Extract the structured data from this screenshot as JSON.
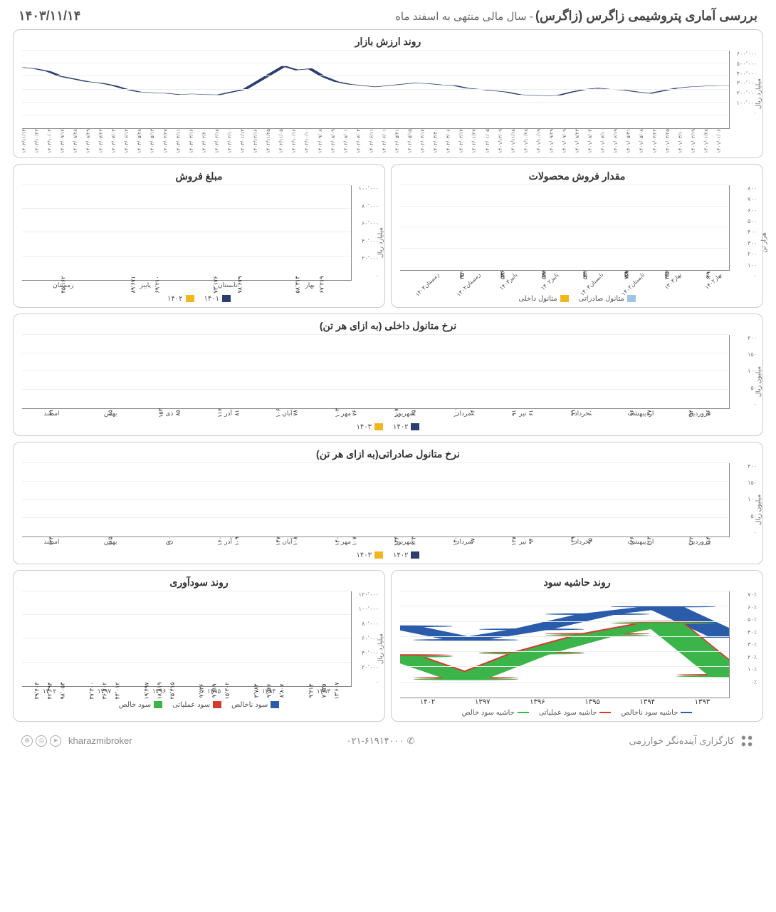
{
  "colors": {
    "navy": "#2c3e6e",
    "yellow": "#f0b81e",
    "lightblue": "#9ec4e6",
    "red": "#d63a2f",
    "green": "#3bb54a",
    "blue_line": "#2a5caa",
    "grid": "#eeeeee",
    "axis": "#888888",
    "text": "#555555"
  },
  "header": {
    "title": "بررسی آماری پتروشیمی زاگرس (زاگرس)",
    "subtitle": " - سال مالی منتهی به اسفند ماه",
    "date": "۱۴۰۳/۱۱/۱۴"
  },
  "market_value": {
    "title": "روند ارزش بازار",
    "y_label": "میلیارد ریال",
    "y_ticks": [
      "۰",
      "۱۰۰٬۰۰۰",
      "۲۰۰٬۰۰۰",
      "۳۰۰٬۰۰۰",
      "۴۰۰٬۰۰۰",
      "۵۰۰٬۰۰۰",
      "۶۰۰٬۰۰۰"
    ],
    "ylim": [
      0,
      600000
    ],
    "x_dates": [
      "۱۴۰۱/۰۱/۰۶",
      "۱۴۰۱/۰۱/۲۸",
      "۱۴۰۱/۰۲/۱۹",
      "۱۴۰۱/۰۳/۱۰",
      "۱۴۰۱/۰۳/۲۵",
      "۱۴۰۱/۰۴/۲۲",
      "۱۴۰۱/۰۵/۰۸",
      "۱۴۰۱/۰۵/۳۱",
      "۱۴۰۱/۰۶/۱۹",
      "۱۴۰۱/۰۷/۱۰",
      "۱۴۰۱/۰۸/۰۴",
      "۱۴۰۱/۰۸/۲۳",
      "۱۴۰۱/۰۹/۰۹",
      "۱۴۰۱/۰۹/۲۹",
      "۱۴۰۱/۱۰/۱۹",
      "۱۴۰۱/۱۰/۲۸",
      "۱۴۰۱/۱۱/۱۸",
      "۱۴۰۱/۱۲/۰۹",
      "۱۴۰۲/۰۱/۰۵",
      "۱۴۰۲/۰۱/۲۷",
      "۱۴۰۲/۰۲/۱۷",
      "۱۴۰۲/۰۳/۰۶",
      "۱۴۰۲/۰۳/۳۰",
      "۱۴۰۲/۰۴/۱۷",
      "۱۴۰۲/۰۵/۱۵",
      "۱۴۰۲/۰۵/۳۱",
      "۱۴۰۲/۰۶/۰۱",
      "۱۴۰۲/۰۶/۱۱",
      "۱۴۰۲/۰۷/۰۳",
      "۱۴۰۲/۰۸/۰۱",
      "۱۴۰۲/۰۸/۰۹",
      "۱۴۰۲/۰۹/۰۸",
      "۱۴۰۲/۱۰/۱۰",
      "۱۴۰۲/۱۰/۱۶",
      "۱۴۰۲/۱۱/۰۵",
      "۱۴۰۲/۱۱/۲۵",
      "۱۴۰۲/۱۲/۱۶",
      "۱۴۰۳/۰۱/۱۴",
      "۱۴۰۳/۰۲/۱۰",
      "۱۴۰۳/۰۲/۱۸",
      "۱۴۰۳/۰۲/۲۰",
      "۱۴۰۳/۰۳/۱۶",
      "۱۴۰۳/۰۴/۱۱",
      "۱۴۰۳/۰۴/۲۷",
      "۱۴۰۳/۰۵/۱۳",
      "۱۴۰۳/۰۵/۲۸",
      "۱۴۰۳/۰۶/۱۲",
      "۱۴۰۳/۰۷/۰۳",
      "۱۴۰۳/۰۷/۲۳",
      "۱۴۰۳/۰۸/۲۹",
      "۱۴۰۳/۰۸/۲۸",
      "۱۴۰۳/۰۹/۱۷",
      "۱۴۰۳/۱۰/۰۴",
      "۱۴۰۳/۱۰/۲۳",
      "۱۴۰۳/۱۱/۱۴"
    ],
    "values": [
      470,
      460,
      440,
      400,
      380,
      360,
      350,
      330,
      300,
      280,
      275,
      270,
      260,
      265,
      260,
      258,
      280,
      300,
      360,
      420,
      480,
      450,
      460,
      400,
      360,
      340,
      330,
      320,
      330,
      340,
      350,
      345,
      335,
      330,
      310,
      300,
      290,
      280,
      260,
      255,
      250,
      255,
      280,
      300,
      310,
      300,
      295,
      280,
      270,
      290,
      310,
      320,
      325,
      330,
      330
    ]
  },
  "sales_volume": {
    "title": "مقدار فروش محصولات",
    "y_label": "هزار تن",
    "y_ticks": [
      "۰",
      "۱۰۰",
      "۲۰۰",
      "۳۰۰",
      "۴۰۰",
      "۵۰۰",
      "۶۰۰",
      "۷۰۰",
      "۸۰۰"
    ],
    "ylim": [
      0,
      800
    ],
    "categories": [
      "بهار۱۴۰۲",
      "بهار۱۴۰۳",
      "تابستان۱۴۰۲",
      "تابستان۱۴۰۳",
      "پاییز۱۴۰۲",
      "پاییز۱۴۰۳",
      "زمستان۱۴۰۲",
      "زمستان۱۴۰۳"
    ],
    "export": {
      "label": "متانول صادراتی",
      "vals": [
        600,
        442,
        757,
        532,
        586,
        586,
        350,
        null
      ],
      "labels": [
        "۶۰۰",
        "۴۴۲",
        "۷۵۷",
        "۵۳۲",
        "۵۸۶",
        "۵۸۶",
        "۳۵۰",
        ""
      ]
    },
    "domestic": {
      "label": "متانول داخلی",
      "vals": [
        49,
        25,
        39,
        22,
        38,
        33,
        33,
        null
      ],
      "labels": [
        "۴۹",
        "۲۵",
        "۳۹",
        "۲۲",
        "۳۸",
        "۳۳",
        "۳۳",
        ""
      ]
    }
  },
  "sales_amount": {
    "title": "مبلغ فروش",
    "y_label": "میلیارد ریال",
    "y_ticks": [
      "۰",
      "۲۰٬۰۰۰",
      "۴۰٬۰۰۰",
      "۶۰٬۰۰۰",
      "۸۰٬۰۰۰",
      "۱۰۰٬۰۰۰"
    ],
    "ylim": [
      0,
      100000
    ],
    "categories": [
      "بهار",
      "تابستان",
      "پاییز",
      "زمستان"
    ],
    "s1401": {
      "label": "۱۴۰۱",
      "vals": [
        67219,
        78679,
        69210,
        45162
      ],
      "labels": [
        "۶۷٬۲۱۹",
        "۷۸٬۶۷۹",
        "۶۹٬۲۱۰",
        "۴۵٬۱۶۲"
      ]
    },
    "s1402": {
      "label": "۱۴۰۲",
      "vals": [
        58313,
        73176,
        89671,
        null
      ],
      "labels": [
        "۵۸٬۳۱۳",
        "۷۳٬۱۷۶",
        "۸۹٬۶۷۱",
        ""
      ]
    }
  },
  "domestic_rate": {
    "title": "نرخ متانول داخلی (به ازای هر تن)",
    "y_label": "میلیون ریال",
    "y_ticks": [
      "۰",
      "۵۰",
      "۱۰۰",
      "۱۵۰",
      "۲۰۰"
    ],
    "ylim": [
      0,
      200
    ],
    "months": [
      "فروردین",
      "اردیبهشت",
      "خرداد",
      "تیر",
      "مرداد",
      "شهریور",
      "مهر",
      "آبان",
      "آذر",
      "دی",
      "بهمن",
      "اسفند"
    ],
    "s1402": {
      "label": "۱۴۰۲",
      "vals": [
        76,
        67,
        60,
        61,
        64,
        65,
        76,
        78,
        81,
        85,
        85,
        89
      ],
      "labels": [
        "۷۶",
        "۶۷",
        "۶۰",
        "۶۱",
        "۶۴",
        "۶۵",
        "۷۶",
        "۷۸",
        "۸۱",
        "۸۵",
        "۸۵",
        "۸۹"
      ]
    },
    "s1403": {
      "label": "۱۴۰۳",
      "vals": [
        94,
        96,
        99,
        91,
        100,
        107,
        103,
        106,
        116,
        153,
        null,
        null
      ],
      "labels": [
        "۹۴",
        "۹۶",
        "۹۹",
        "۹۱",
        "۱۰۰",
        "۱۰۷",
        "۱۰۳",
        "۱۰۶",
        "۱۱۶",
        "۱۵۳",
        "",
        ""
      ]
    }
  },
  "export_rate": {
    "title": "نرخ متانول صادراتی(به ازای هر تن)",
    "y_label": "میلیون ریال",
    "y_ticks": [
      "۰",
      "۵۰",
      "۱۰۰",
      "۱۵۰",
      "۲۰۰"
    ],
    "ylim": [
      0,
      200
    ],
    "months": [
      "فروردین",
      "اردیبهشت",
      "خرداد",
      "تیر",
      "مرداد",
      "شهریور",
      "مهر",
      "آبان",
      "آذر",
      "دی",
      "بهمن",
      "اسفند"
    ],
    "s1402": {
      "label": "۱۴۰۲",
      "vals": [
        114,
        113,
        95,
        94,
        97,
        103,
        107,
        108,
        109,
        110,
        115,
        124
      ],
      "labels": [
        "۱۱۴",
        "۱۱۳",
        "۹۵",
        "۹۴",
        "۹۷",
        "۱۰۳",
        "۱۰۷",
        "۱۰۸",
        "۱۰۹",
        "۱۱۰",
        "۱۱۵",
        "۱۲۴"
      ]
    },
    "s1403": {
      "label": "۱۴۰۳",
      "vals": [
        122,
        126,
        129,
        127,
        130,
        134,
        140,
        147,
        160,
        null,
        null,
        null
      ],
      "labels": [
        "۱۲۲",
        "۱۲۶",
        "۱۲۹",
        "۱۲۷",
        "۱۳۰",
        "۱۳۴",
        "۱۴۰",
        "۱۴۷",
        "۱۶۰",
        "",
        "",
        ""
      ]
    }
  },
  "margin_trend": {
    "title": "روند حاشیه سود",
    "y_ticks": [
      "۰٪",
      "۱۰٪",
      "۲۰٪",
      "۳۰٪",
      "۴۰٪",
      "۵۰٪",
      "۶۰٪",
      "۷۰٪"
    ],
    "ylim": [
      0,
      70
    ],
    "years": [
      "۱۳۹۳",
      "۱۳۹۴",
      "۱۳۹۵",
      "۱۳۹۶",
      "۱۳۹۷",
      "۱۴۰۲"
    ],
    "gross": {
      "label": "حاشیه سود ناخالص",
      "vals": [
        47,
        38,
        45,
        55,
        60,
        40
      ]
    },
    "operating": {
      "label": "حاشیه سود عملیاتی",
      "vals": [
        28,
        13,
        30,
        42,
        50,
        15
      ]
    },
    "net": {
      "label": "حاشیه سود خالص",
      "vals": [
        27,
        12,
        29,
        41,
        49,
        14
      ]
    }
  },
  "profit_trend": {
    "title": "روند سودآوری",
    "y_label": "میلیارد ریال",
    "y_ticks": [
      "۰",
      "۲۰٬۰۰۰",
      "۴۰٬۰۰۰",
      "۶۰٬۰۰۰",
      "۸۰٬۰۰۰",
      "۱۰۰٬۰۰۰",
      "۱۲۰٬۰۰۰"
    ],
    "ylim": [
      0,
      120000
    ],
    "years": [
      "۱۳۹۳",
      "۱۳۹۴",
      "۱۳۹۵",
      "۱۳۹۶",
      "۱۳۹۷",
      "۱۴۰۲"
    ],
    "gross": {
      "label": "سود ناخالص",
      "vals": [
        13607,
        8807,
        15302,
        25415,
        44012,
        98053
      ],
      "labels": [
        "۱۳٬۶۰۷",
        "۸٬۸۰۷",
        "۱۵٬۳۰۲",
        "۲۵٬۴۱۵",
        "۴۴٬۰۱۲",
        "۹۸٬۰۵۳"
      ]
    },
    "operating": {
      "label": "سود عملیاتی",
      "vals": [
        7635,
        9566,
        9419,
        18819,
        36702,
        42394
      ],
      "labels": [
        "۷٬۶۳۵",
        "۹٬۵۶۶",
        "۹٬۴۱۹",
        "۱۸٬۸۱۹",
        "۳۶٬۷۰۲",
        "۴۲٬۳۹۴"
      ]
    },
    "net": {
      "label": "سود خالص",
      "vals": [
        9313,
        3783,
        9536,
        19497,
        37300,
        39404
      ],
      "labels": [
        "۹٬۳۱۳",
        "۳٬۷۸۳",
        "۹٬۵۳۶",
        "۱۹٬۴۹۷",
        "۳۷٬۳۰۰",
        "۳۹٬۴۰۴"
      ]
    }
  },
  "footer": {
    "brand": "کارگزاری آینده‌نگر خوارزمی",
    "phone": "۰۲۱-۶۱۹۱۴۰۰۰",
    "handle": "kharazmibroker"
  }
}
